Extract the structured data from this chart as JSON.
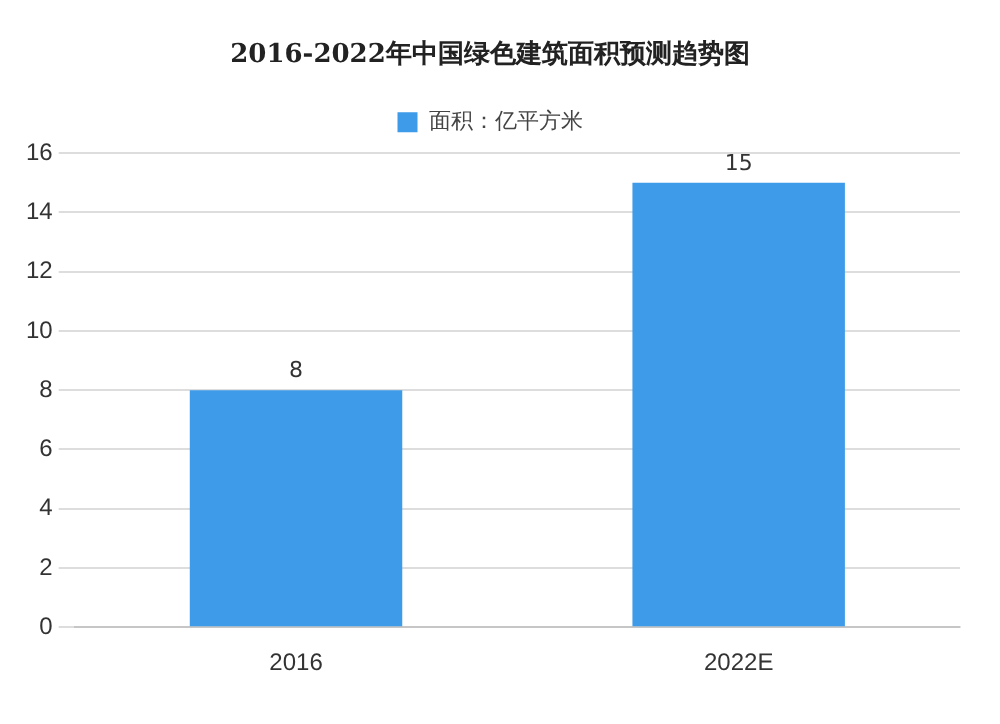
{
  "chart_data": {
    "type": "bar",
    "title": "2016-2022年中国绿色建筑面积预测趋势图",
    "categories": [
      "2016",
      "2022E"
    ],
    "series": [
      {
        "name": "面积：亿平方米",
        "color": "#3d9be9",
        "values": [
          8,
          15
        ]
      }
    ],
    "ylim": [
      0,
      16
    ],
    "yticks": [
      0,
      2,
      4,
      6,
      8,
      10,
      12,
      14,
      16
    ],
    "grid": "y",
    "legend": "top",
    "data_labels": true
  }
}
